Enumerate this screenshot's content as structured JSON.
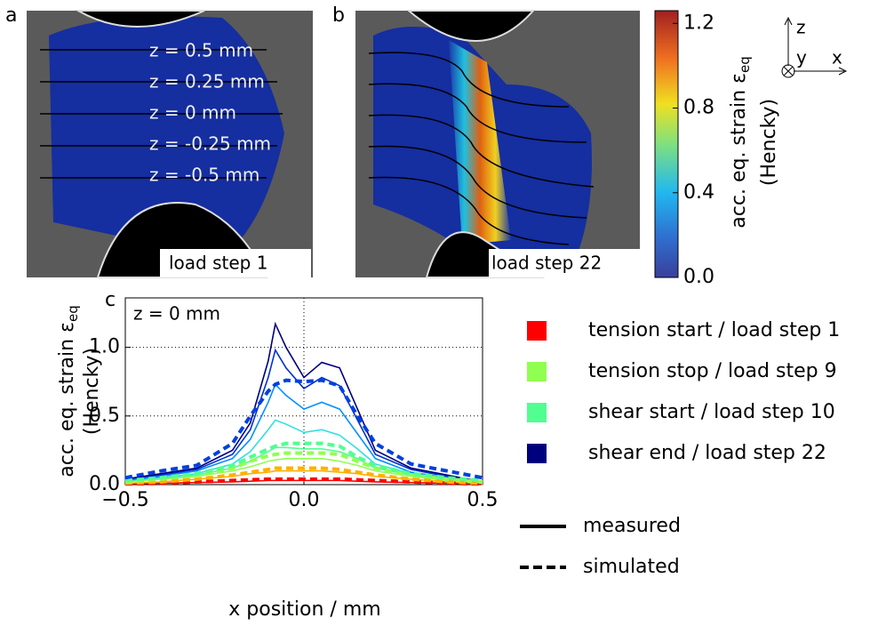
{
  "panels": [
    {
      "letter": "a",
      "caption": "load step 1",
      "annotations": [
        "z =  0.5 mm",
        "z =  0.25 mm",
        "z = 0 mm",
        "z = -0.25 mm",
        "z = -0.5 mm"
      ]
    },
    {
      "letter": "b",
      "caption": "load step 22"
    }
  ],
  "colorbar": {
    "lim": [
      0,
      1.26
    ],
    "ticks": [
      {
        "value": 0,
        "label": "0.0"
      },
      {
        "value": 0.4,
        "label": "0.4"
      },
      {
        "value": 0.8,
        "label": "0.8"
      },
      {
        "value": 1.2,
        "label": "1.2"
      }
    ],
    "label": {
      "text": "acc. eq. strain ε",
      "subscript": "eq",
      "line2": "(Hencky)"
    }
  },
  "triad": {
    "z": "z",
    "y": "y",
    "x": "x"
  },
  "chart_data": {
    "type": "line",
    "letter": "c",
    "annotation": "z = 0 mm",
    "xlabel": "x position / mm",
    "ylabel": {
      "text": "acc. eq. strain ε",
      "subscript": "eq",
      "line2": "(Hencky)"
    },
    "xlim": [
      -0.5,
      0.5
    ],
    "ylim": [
      0,
      1.36
    ],
    "xticks": [
      {
        "value": -0.5,
        "label": "−0.5"
      },
      {
        "value": 0,
        "label": "0.0"
      },
      {
        "value": 0.5,
        "label": "0.5"
      }
    ],
    "yticks": [
      {
        "value": 0,
        "label": "0.0"
      },
      {
        "value": 0.5,
        "label": "0.5"
      },
      {
        "value": 1,
        "label": "1.0"
      }
    ],
    "grid_y": [
      0.5,
      1
    ],
    "grid_x": [
      0
    ],
    "legend_colors": [
      {
        "label": "tension start / load step 1",
        "color": "#ff0000"
      },
      {
        "label": "tension stop / load step 9",
        "color": "#90ff50"
      },
      {
        "label": "shear start / load step 10",
        "color": "#50ff90"
      },
      {
        "label": "shear end / load step 22",
        "color": "#00007f"
      }
    ],
    "legend_styles": [
      {
        "label": "measured"
      },
      {
        "label": "simulated",
        "dashed": true
      }
    ],
    "x": [
      -0.5,
      -0.4,
      -0.3,
      -0.2,
      -0.15,
      -0.1,
      -0.08,
      -0.05,
      0,
      0.05,
      0.1,
      0.15,
      0.2,
      0.3,
      0.4,
      0.5
    ],
    "series": [
      {
        "style": "measured",
        "color": "#ff0000",
        "values": [
          0.005,
          0.01,
          0.015,
          0.02,
          0.025,
          0.03,
          0.03,
          0.03,
          0.03,
          0.03,
          0.03,
          0.025,
          0.02,
          0.015,
          0.01,
          0.005
        ]
      },
      {
        "style": "measured",
        "color": "#ffb000",
        "values": [
          0.01,
          0.02,
          0.04,
          0.06,
          0.08,
          0.09,
          0.1,
          0.1,
          0.1,
          0.1,
          0.09,
          0.08,
          0.06,
          0.04,
          0.02,
          0.01
        ]
      },
      {
        "style": "measured",
        "color": "#90ff50",
        "values": [
          0.02,
          0.04,
          0.06,
          0.1,
          0.13,
          0.17,
          0.18,
          0.19,
          0.19,
          0.19,
          0.17,
          0.14,
          0.1,
          0.06,
          0.03,
          0.01
        ]
      },
      {
        "style": "measured",
        "color": "#50ff90",
        "values": [
          0.03,
          0.05,
          0.07,
          0.12,
          0.17,
          0.24,
          0.27,
          0.27,
          0.26,
          0.26,
          0.24,
          0.19,
          0.12,
          0.07,
          0.04,
          0.02
        ]
      },
      {
        "style": "measured",
        "color": "#30e0e0",
        "values": [
          0.03,
          0.05,
          0.08,
          0.15,
          0.24,
          0.4,
          0.47,
          0.44,
          0.38,
          0.4,
          0.36,
          0.26,
          0.15,
          0.08,
          0.04,
          0.02
        ]
      },
      {
        "style": "measured",
        "color": "#0090ff",
        "values": [
          0.03,
          0.06,
          0.1,
          0.19,
          0.33,
          0.6,
          0.73,
          0.65,
          0.55,
          0.6,
          0.55,
          0.37,
          0.19,
          0.09,
          0.05,
          0.02
        ]
      },
      {
        "style": "measured",
        "color": "#0030d0",
        "values": [
          0.04,
          0.07,
          0.11,
          0.22,
          0.4,
          0.78,
          0.98,
          0.85,
          0.7,
          0.78,
          0.72,
          0.47,
          0.22,
          0.11,
          0.06,
          0.02
        ]
      },
      {
        "style": "measured",
        "color": "#00007f",
        "values": [
          0.04,
          0.08,
          0.12,
          0.25,
          0.45,
          0.9,
          1.17,
          1.0,
          0.78,
          0.89,
          0.85,
          0.55,
          0.25,
          0.12,
          0.07,
          0.02
        ]
      },
      {
        "style": "simulated",
        "color": "#ff0000",
        "values": [
          0.005,
          0.01,
          0.02,
          0.03,
          0.035,
          0.04,
          0.04,
          0.04,
          0.04,
          0.04,
          0.04,
          0.035,
          0.03,
          0.02,
          0.01,
          0.005
        ]
      },
      {
        "style": "simulated",
        "color": "#ffb000",
        "values": [
          0.01,
          0.02,
          0.04,
          0.07,
          0.09,
          0.11,
          0.12,
          0.12,
          0.12,
          0.12,
          0.11,
          0.09,
          0.07,
          0.04,
          0.02,
          0.01
        ]
      },
      {
        "style": "simulated",
        "color": "#90ff50",
        "values": [
          0.02,
          0.04,
          0.07,
          0.12,
          0.17,
          0.21,
          0.22,
          0.23,
          0.23,
          0.23,
          0.22,
          0.17,
          0.12,
          0.07,
          0.04,
          0.02
        ]
      },
      {
        "style": "simulated",
        "color": "#50ff90",
        "values": [
          0.03,
          0.05,
          0.08,
          0.14,
          0.2,
          0.26,
          0.28,
          0.3,
          0.3,
          0.3,
          0.28,
          0.2,
          0.14,
          0.08,
          0.05,
          0.03
        ]
      },
      {
        "style": "simulated",
        "color": "#0040e0",
        "values": [
          0.05,
          0.1,
          0.14,
          0.3,
          0.5,
          0.68,
          0.73,
          0.76,
          0.75,
          0.76,
          0.72,
          0.5,
          0.3,
          0.15,
          0.1,
          0.05
        ]
      }
    ]
  }
}
